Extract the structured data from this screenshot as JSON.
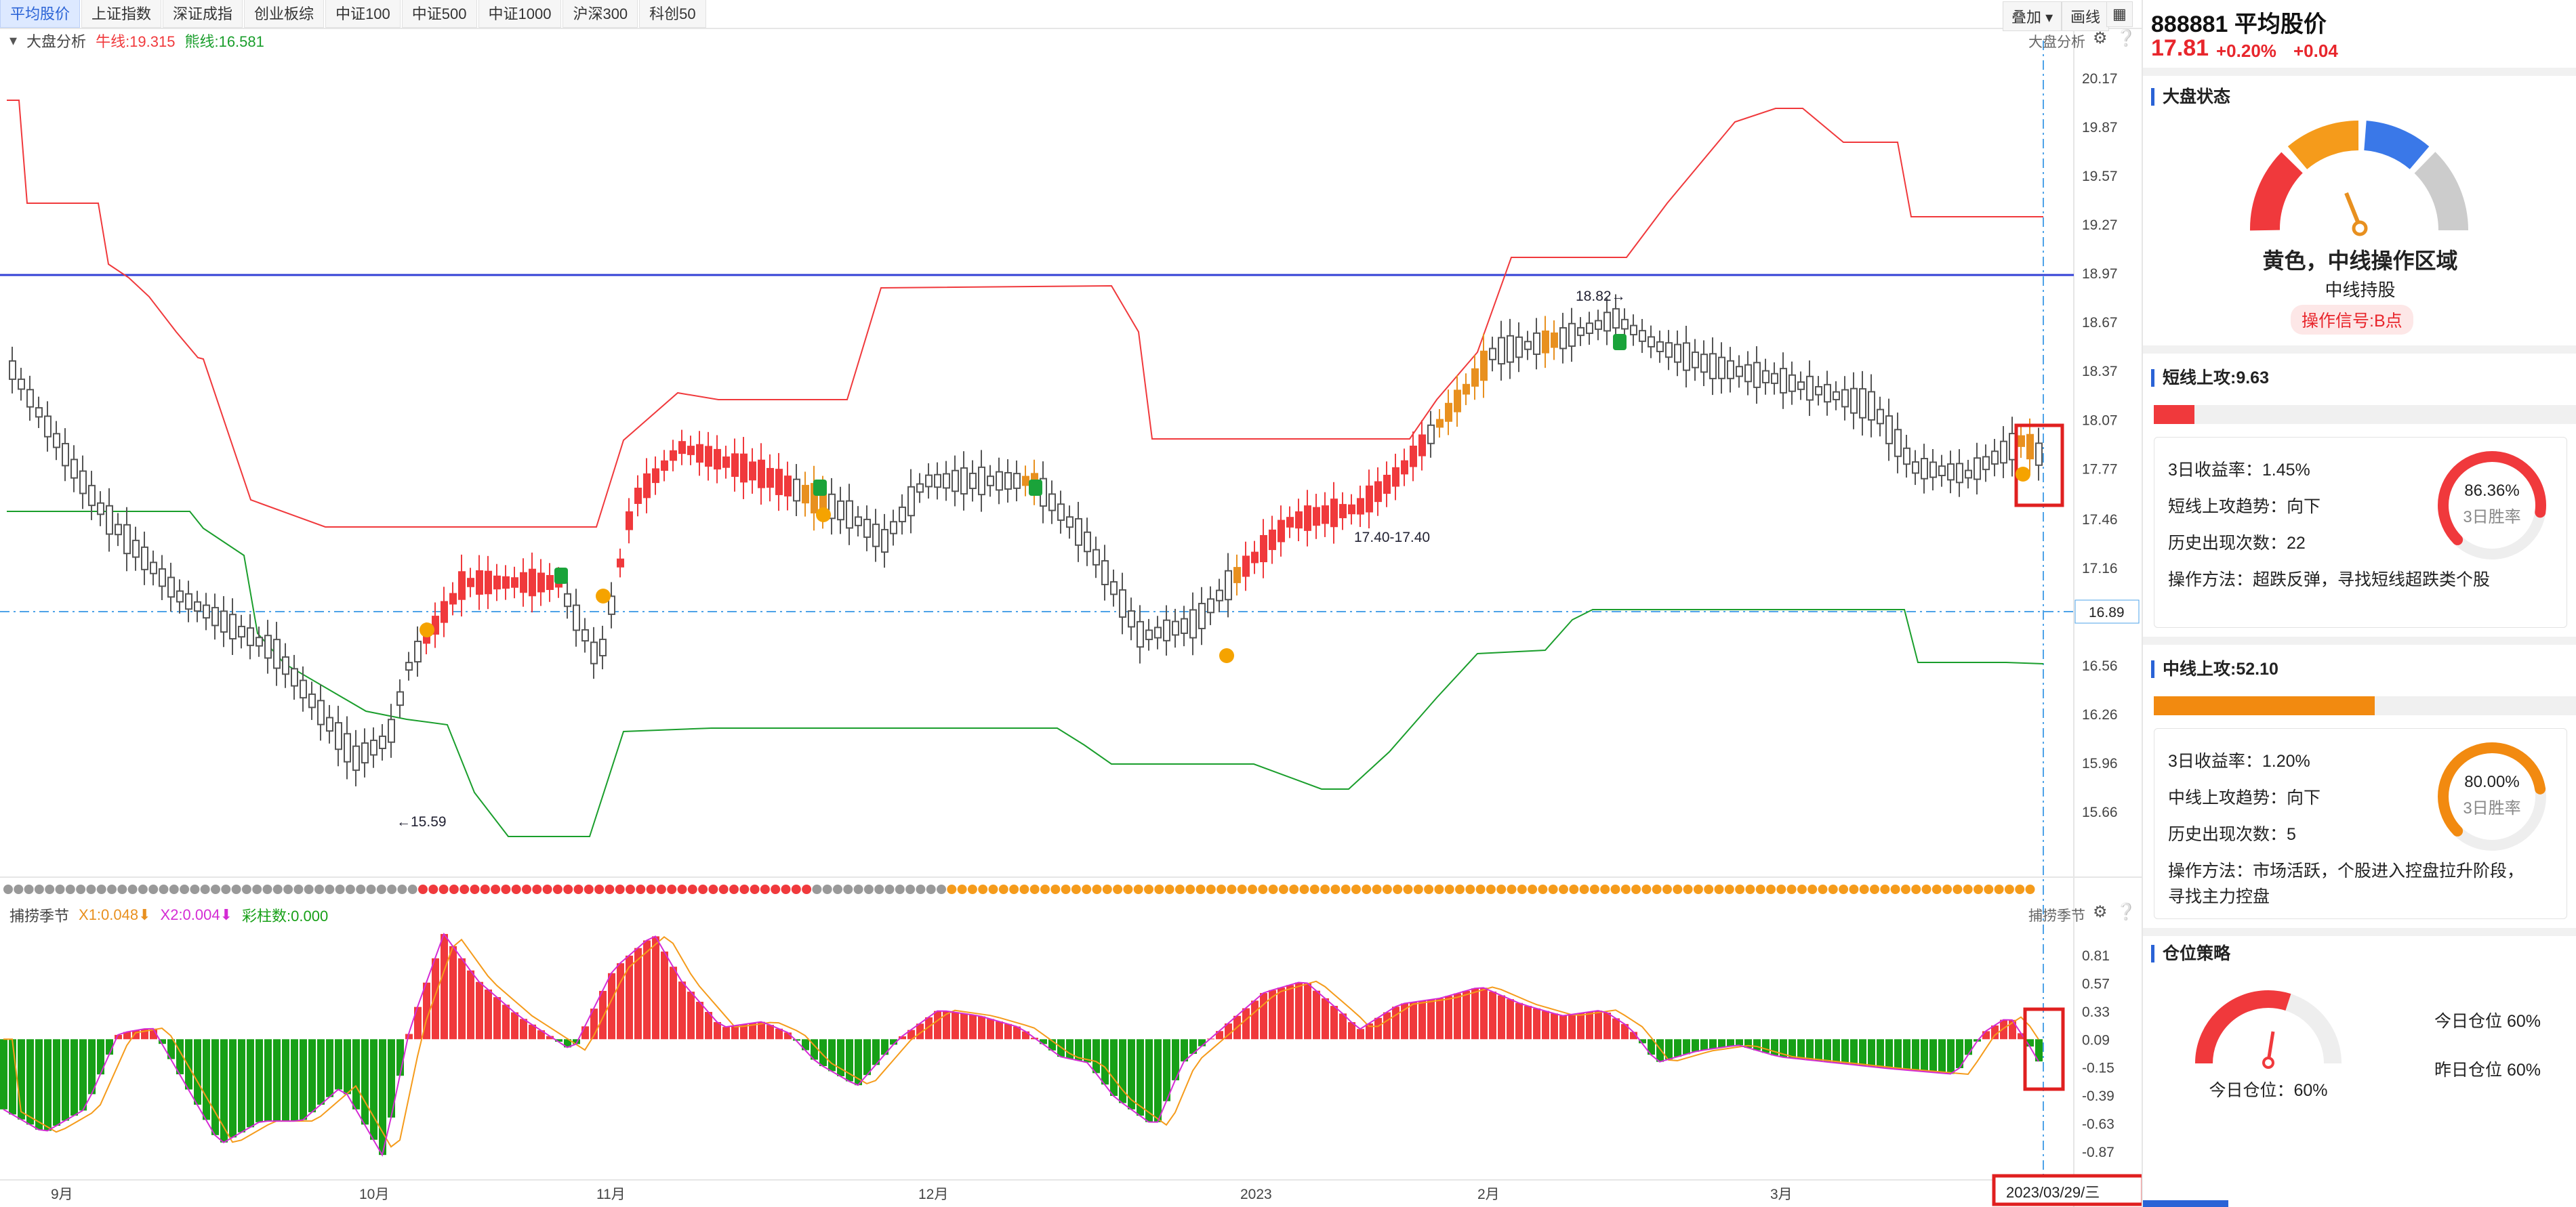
{
  "tabs": [
    "平均股价",
    "上证指数",
    "深证成指",
    "创业板综",
    "中证100",
    "中证500",
    "中证1000",
    "沪深300",
    "科创50"
  ],
  "tools": {
    "overlay": "叠加 ▾",
    "draw": "画线",
    "grid_icon": "grid-icon"
  },
  "main_indicator": {
    "name": "大盘分析",
    "bull_label": "牛线:19.315",
    "bear_label": "熊线:16.581",
    "right_label": "大盘分析"
  },
  "price_axis": [
    "20.17",
    "19.87",
    "19.57",
    "19.27",
    "18.97",
    "18.67",
    "18.37",
    "18.07",
    "17.77",
    "17.46",
    "17.16",
    "16.86",
    "16.56",
    "16.26",
    "15.96",
    "15.66"
  ],
  "current_price_tag": "16.89",
  "annotations": {
    "low": "15.59",
    "high": "18.82",
    "mid": "17.40-17.40"
  },
  "sub_indicator": {
    "name": "捕捞季节",
    "x1": "X1:0.048",
    "x2": "X2:0.004",
    "bars": "彩柱数:0.000",
    "right_label": "捕捞季节"
  },
  "sub_axis": [
    "0.81",
    "0.57",
    "0.33",
    "0.09",
    "-0.15",
    "-0.39",
    "-0.63",
    "-0.87"
  ],
  "time_axis": [
    "9月",
    "10月",
    "11月",
    "12月",
    "2023",
    "2月",
    "3月"
  ],
  "date_highlight": "2023/03/29/三",
  "colors": {
    "up": "#f0393c",
    "down": "#555555",
    "orange": "#e8901f",
    "green_line": "#1a9e2c",
    "red_line": "#f0393c",
    "blue_line": "#3340d6",
    "dash": "#4ea3e8",
    "macd_up": "#f0393c",
    "macd_down": "#17a017"
  },
  "stock": {
    "code_name": "888881 平均股价",
    "price": "17.81",
    "pct": "+0.20%",
    "chg": "+0.04"
  },
  "market_state": {
    "title": "大盘状态",
    "headline": "黄色，中线操作区域",
    "sub": "中线持股",
    "signal": "操作信号:B点"
  },
  "short_attack": {
    "title": "短线上攻:9.63",
    "fill_pct": 9.63,
    "ret": "3日收益率：1.45%",
    "trend": "短线上攻趋势：向下",
    "count": "历史出现次数：22",
    "method": "操作方法：超跌反弹，寻找短线超跌类个股",
    "win_rate": "86.36%",
    "win_label": "3日胜率",
    "win_value": 86.36
  },
  "mid_attack": {
    "title": "中线上攻:52.10",
    "fill_pct": 52.1,
    "ret": "3日收益率：1.20%",
    "trend": "中线上攻趋势：向下",
    "count": "历史出现次数：5",
    "method1": "操作方法：市场活跃，个股进入控盘拉升阶段，",
    "method2": "寻找主力控盘",
    "win_rate": "80.00%",
    "win_label": "3日胜率",
    "win_value": 80.0
  },
  "position": {
    "title": "仓位策略",
    "today_label": "今日仓位：60%",
    "today_right": "今日仓位  60%",
    "yesterday_right": "昨日仓位  60%",
    "value": 60
  }
}
